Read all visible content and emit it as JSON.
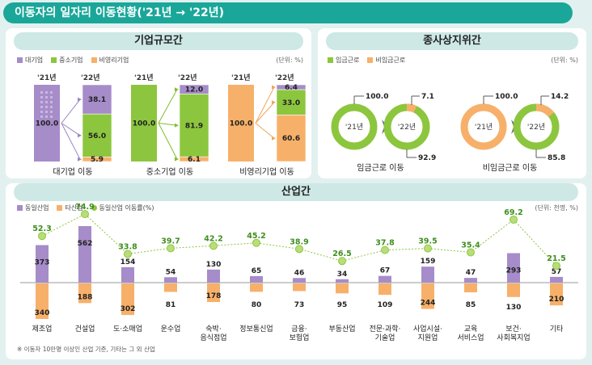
{
  "title": "이동자의 일자리 이동현황('21년 → '22년)",
  "firm": {
    "title": "기업규모간",
    "unit": "(단위: %)",
    "legend": [
      {
        "label": "대기업",
        "color": "#a68cc9"
      },
      {
        "label": "중소기업",
        "color": "#8cc63e"
      },
      {
        "label": "비영리기업",
        "color": "#f7b06a"
      }
    ],
    "year_from": "'21년",
    "year_to": "'22년",
    "groups": [
      {
        "label": "대기업 이동",
        "base": "100.0",
        "base_color": "#a68cc9",
        "to": [
          {
            "v": "38.1",
            "c": "#a68cc9",
            "h": 38.1
          },
          {
            "v": "56.0",
            "c": "#8cc63e",
            "h": 56.0
          },
          {
            "v": "5.9",
            "c": "#f7b06a",
            "h": 5.9
          }
        ]
      },
      {
        "label": "중소기업 이동",
        "base": "100.0",
        "base_color": "#8cc63e",
        "to": [
          {
            "v": "12.0",
            "c": "#a68cc9",
            "h": 12.0
          },
          {
            "v": "81.9",
            "c": "#8cc63e",
            "h": 81.9
          },
          {
            "v": "6.1",
            "c": "#f7b06a",
            "h": 6.1
          }
        ]
      },
      {
        "label": "비영리기업 이동",
        "base": "100.0",
        "base_color": "#f7b06a",
        "to": [
          {
            "v": "6.4",
            "c": "#a68cc9",
            "h": 6.4
          },
          {
            "v": "33.0",
            "c": "#8cc63e",
            "h": 33.0
          },
          {
            "v": "60.6",
            "c": "#f7b06a",
            "h": 60.6
          }
        ]
      }
    ]
  },
  "emp": {
    "title": "종사상지위간",
    "unit": "(단위: %)",
    "legend": [
      {
        "label": "임금근로",
        "color": "#8cc63e"
      },
      {
        "label": "비임금근로",
        "color": "#f7b06a"
      }
    ],
    "groups": [
      {
        "label": "임금근로 이동",
        "base_color": "#8cc63e",
        "base_val": "100.0",
        "year_from": "'21년",
        "year_to": "'22년",
        "small": "7.1",
        "large": "92.9",
        "large_color": "#8cc63e",
        "small_color": "#f7b06a",
        "small_frac": 0.071
      },
      {
        "label": "비임금근로 이동",
        "base_color": "#f7b06a",
        "base_val": "100.0",
        "year_from": "'21년",
        "year_to": "'22년",
        "small": "14.2",
        "large": "85.8",
        "large_color": "#8cc63e",
        "small_color": "#f7b06a",
        "small_frac": 0.142
      }
    ]
  },
  "industry": {
    "title": "산업간",
    "unit": "(단위: 천명, %)",
    "legend": [
      {
        "label": "동일산업",
        "color": "#a68cc9"
      },
      {
        "label": "타산업",
        "color": "#f7b06a"
      },
      {
        "label": "동일산업 이동률(%)",
        "color": "#8cc63e"
      }
    ],
    "note": "※ 이동자 10만명 이상인 산업 기준, 기타는 그 외 산업",
    "chart_data": {
      "type": "bar",
      "categories": [
        "제조업",
        "건설업",
        "도·소매업",
        "운수업",
        "숙박·\n음식점업",
        "정보통신업",
        "금융·\n보험업",
        "부동산업",
        "전문·과학·\n기술업",
        "사업시설·\n지원업",
        "교육\n서비스업",
        "보건·\n사회복지업",
        "기타"
      ],
      "series": [
        {
          "name": "동일산업",
          "values": [
            373,
            562,
            154,
            54,
            130,
            65,
            46,
            34,
            67,
            159,
            47,
            293,
            57
          ]
        },
        {
          "name": "타산업",
          "values": [
            340,
            188,
            302,
            81,
            178,
            80,
            73,
            95,
            109,
            244,
            85,
            130,
            210
          ]
        },
        {
          "name": "동일산업 이동률(%)",
          "values": [
            52.3,
            74.9,
            33.8,
            39.7,
            42.2,
            45.2,
            38.9,
            26.5,
            37.8,
            39.5,
            35.4,
            69.2,
            21.5
          ]
        }
      ]
    }
  }
}
